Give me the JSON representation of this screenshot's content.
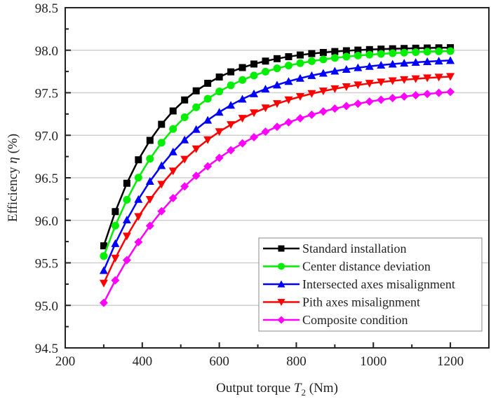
{
  "chart_data": {
    "type": "line",
    "title": "",
    "xlabel_prefix": "Output torque ",
    "xlabel_var": "T",
    "xlabel_sub": "2",
    "xlabel_suffix": " (Nm)",
    "ylabel_prefix": "Efficiency ",
    "ylabel_var": "η",
    "ylabel_suffix": " (%)",
    "xlim": [
      200,
      1300
    ],
    "ylim": [
      94.5,
      98.5
    ],
    "xticks": [
      200,
      400,
      600,
      800,
      1000,
      1200
    ],
    "xtick_labels": [
      "200",
      "400",
      "600",
      "800",
      "1000",
      "1200"
    ],
    "yticks": [
      94.5,
      95.0,
      95.5,
      96.0,
      96.5,
      97.0,
      97.5,
      98.0,
      98.5
    ],
    "ytick_labels": [
      "94.5",
      "95.0",
      "95.5",
      "96.0",
      "96.5",
      "97.0",
      "97.5",
      "98.0",
      "98.5"
    ],
    "grid": "horizontal",
    "legend_position": "bottom-right",
    "x_start": 300,
    "x_end": 1200,
    "x_step": 30,
    "series": [
      {
        "name": "Standard installation",
        "color": "#000000",
        "marker": "square",
        "start": 95.7,
        "end": 98.03,
        "k": 0.0063
      },
      {
        "name": "Center distance deviation",
        "color": "#00ee00",
        "marker": "circle",
        "start": 95.58,
        "end": 97.99,
        "k": 0.0053
      },
      {
        "name": "Intersected axes misalignment",
        "color": "#0000ff",
        "marker": "triangle-up",
        "start": 95.41,
        "end": 97.88,
        "k": 0.0045
      },
      {
        "name": "Pith axes misalignment",
        "color": "#ff0000",
        "marker": "triangle-down",
        "start": 95.26,
        "end": 97.69,
        "k": 0.0042
      },
      {
        "name": "Composite condition",
        "color": "#ff00ff",
        "marker": "diamond",
        "start": 95.03,
        "end": 97.51,
        "k": 0.0036
      }
    ]
  }
}
